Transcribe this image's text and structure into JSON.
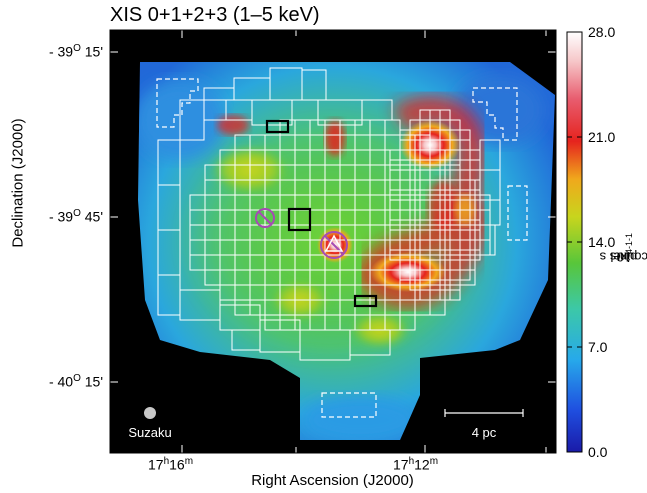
{
  "title": "XIS 0+1+2+3 (1–5 keV)",
  "y_axis": {
    "label": "Declination (J2000)",
    "ticks": [
      {
        "deg": "- 39",
        "sup": "O",
        "min": " 15'"
      },
      {
        "deg": "- 39",
        "sup": "O",
        "min": " 45'"
      },
      {
        "deg": "- 40",
        "sup": "O",
        "min": " 15'"
      }
    ]
  },
  "x_axis": {
    "label": "Right Ascension (J2000)",
    "ticks": [
      {
        "h": "17",
        "hs": "h",
        "m": "16",
        "ms": "m"
      },
      {
        "h": "17",
        "hs": "h",
        "m": "12",
        "ms": "m"
      }
    ]
  },
  "colorbar": {
    "ticks": [
      "28.0",
      "21.0",
      "14.0",
      "7.0",
      "0.0"
    ],
    "label": {
      "pre": "10",
      "exp": "-4",
      "mid": " counts s",
      "exp2": "-1",
      "post": " pixel",
      "exp3": "-1"
    },
    "stops": [
      "#1a1aa8",
      "#1f4fe0",
      "#27a9ea",
      "#3cc8a8",
      "#58c63a",
      "#c8d51d",
      "#f0a81c",
      "#e5231e",
      "#e85c6e",
      "#f6c6c8",
      "#ffffff"
    ]
  },
  "annotations": {
    "telescope": "Suzaku",
    "scale_bar": "4 pc"
  },
  "colors": {
    "background": "#000000",
    "grid_lines": "#ffffff",
    "source_region": "#000000",
    "point_source_marker": "#a64bb4",
    "emission_hot": "#e5231e"
  }
}
